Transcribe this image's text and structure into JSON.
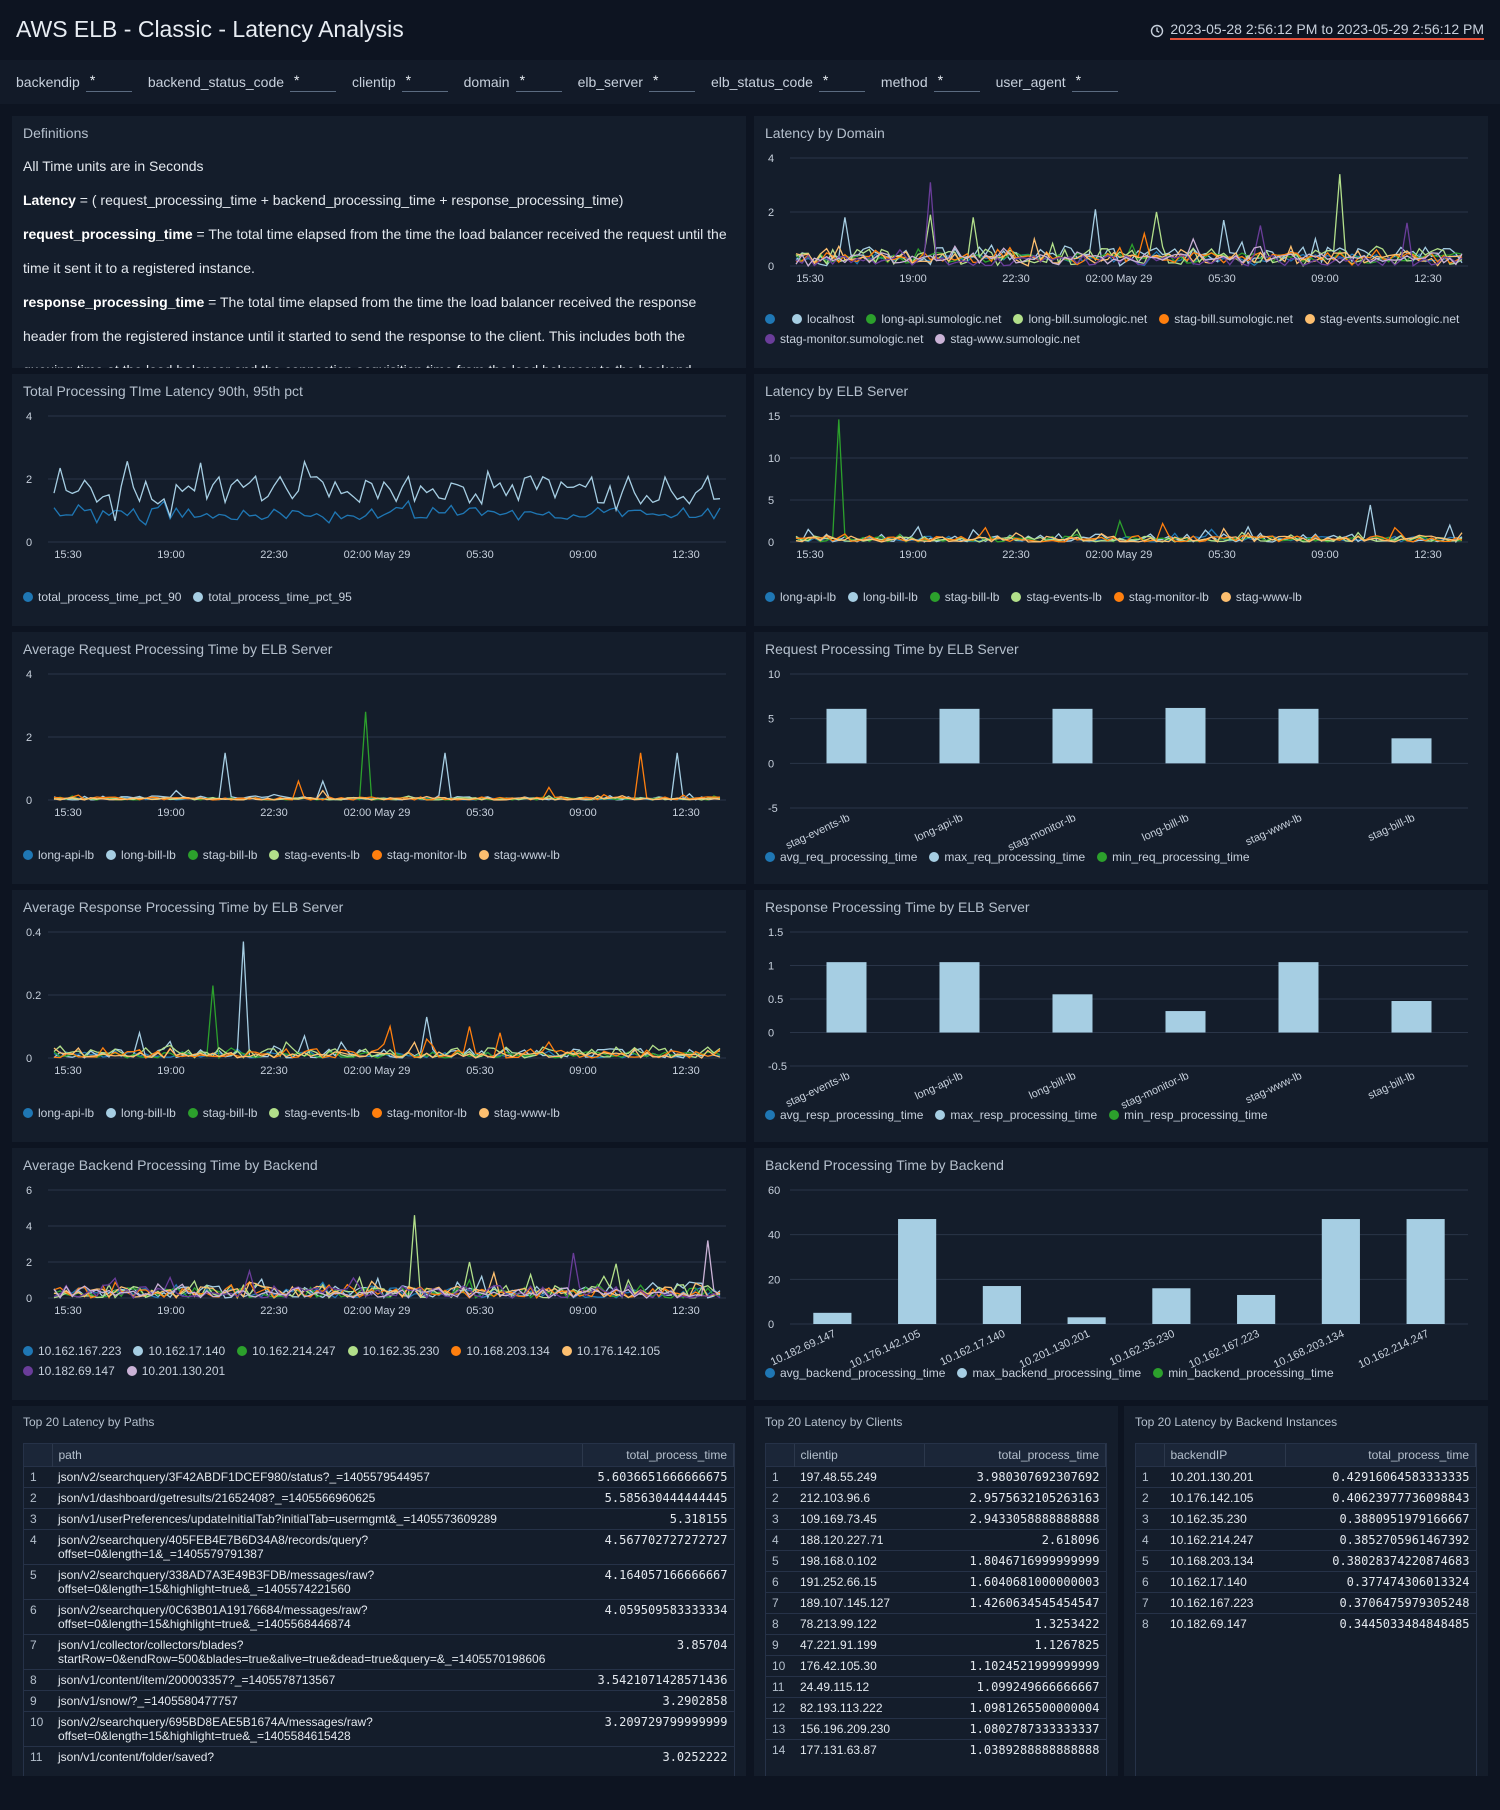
{
  "header": {
    "title": "AWS ELB - Classic - Latency Analysis",
    "time_range": "2023-05-28 2:56:12 PM to 2023-05-29 2:56:12 PM",
    "clock_icon": "clock-icon"
  },
  "filters": [
    {
      "label": "backendip",
      "value": "*"
    },
    {
      "label": "backend_status_code",
      "value": "*"
    },
    {
      "label": "clientip",
      "value": "*"
    },
    {
      "label": "domain",
      "value": "*"
    },
    {
      "label": "elb_server",
      "value": "*"
    },
    {
      "label": "elb_status_code",
      "value": "*"
    },
    {
      "label": "method",
      "value": "*"
    },
    {
      "label": "user_agent",
      "value": "*"
    }
  ],
  "definitions": {
    "title": "Definitions",
    "line1": "All Time units are in Seconds",
    "latency_term": "Latency",
    "latency_def": " = ( request_processing_time + backend_processing_time + response_processing_time)",
    "req_term": "request_processing_time",
    "req_def": " = The total time elapsed from the time the load balancer received the request until the time it sent it to a registered instance.",
    "resp_term": "response_processing_time",
    "resp_def": " = The total time elapsed from the time the load balancer received the response header from the registered instance until it started to send the response to the client. This includes both the queuing time at the load balancer and the connection acquisition time from the load balancer to the backend."
  },
  "colors": {
    "c1": "#1f77b4",
    "c2": "#a6cee3",
    "c3": "#2ca02c",
    "c4": "#b2df8a",
    "c5": "#ff7f0e",
    "c6": "#fdbf6f",
    "c7": "#6a3d9a",
    "c8": "#cab2d6"
  },
  "time_ticks": [
    "15:30",
    "19:00",
    "22:30",
    "02:00 May 29",
    "05:30",
    "09:00",
    "12:30"
  ],
  "chart_data": [
    {
      "id": "latency-by-domain",
      "type": "line",
      "title": "Latency by Domain",
      "ylim": [
        0,
        4
      ],
      "yticks": [
        0,
        2,
        4
      ],
      "legend": [
        "",
        "localhost",
        "long-api.sumologic.net",
        "long-bill.sumologic.net",
        "stag-bill.sumologic.net",
        "stag-events.sumologic.net",
        "stag-monitor.sumologic.net",
        "stag-www.sumologic.net"
      ],
      "series": [
        {
          "name": "",
          "base": 0.3,
          "noise": 0.15,
          "peaks": []
        },
        {
          "name": "localhost",
          "base": 0.4,
          "noise": 0.3,
          "peaks": [
            [
              0.07,
              1.8
            ],
            [
              0.45,
              2.1
            ],
            [
              0.64,
              1.7
            ]
          ]
        },
        {
          "name": "long-api.sumologic.net",
          "base": 0.3,
          "noise": 0.2,
          "peaks": [
            [
              0.5,
              0.8
            ]
          ]
        },
        {
          "name": "long-bill.sumologic.net",
          "base": 0.35,
          "noise": 0.3,
          "peaks": [
            [
              0.82,
              3.4
            ],
            [
              0.54,
              2.0
            ],
            [
              0.2,
              1.9
            ],
            [
              0.27,
              1.8
            ]
          ]
        },
        {
          "name": "stag-bill.sumologic.net",
          "base": 0.3,
          "noise": 0.2,
          "peaks": [
            [
              0.52,
              1.2
            ]
          ]
        },
        {
          "name": "stag-events.sumologic.net",
          "base": 0.3,
          "noise": 0.2,
          "peaks": [
            [
              0.36,
              1.0
            ]
          ]
        },
        {
          "name": "stag-monitor.sumologic.net",
          "base": 0.2,
          "noise": 0.2,
          "peaks": [
            [
              0.2,
              3.1
            ],
            [
              0.92,
              1.6
            ],
            [
              0.7,
              1.5
            ]
          ]
        },
        {
          "name": "stag-www.sumologic.net",
          "base": 0.3,
          "noise": 0.2,
          "peaks": [
            [
              0.6,
              1.0
            ]
          ]
        }
      ]
    },
    {
      "id": "total-processing",
      "type": "line",
      "title": "Total Processing TIme Latency 90th, 95th pct",
      "ylim": [
        0,
        4
      ],
      "yticks": [
        0,
        2,
        4
      ],
      "legend": [
        "total_process_time_pct_90",
        "total_process_time_pct_95"
      ],
      "series": [
        {
          "name": "total_process_time_pct_90",
          "base": 0.9,
          "noise": 0.2,
          "peaks": []
        },
        {
          "name": "total_process_time_pct_95",
          "base": 1.65,
          "noise": 0.45,
          "peaks": []
        }
      ]
    },
    {
      "id": "latency-by-elb",
      "type": "line",
      "title": "Latency by ELB Server",
      "ylim": [
        0,
        15
      ],
      "yticks": [
        0,
        5,
        10,
        15
      ],
      "legend": [
        "long-api-lb",
        "long-bill-lb",
        "stag-bill-lb",
        "stag-events-lb",
        "stag-monitor-lb",
        "stag-www-lb"
      ],
      "series": [
        {
          "name": "long-api-lb",
          "base": 0.3,
          "noise": 0.4,
          "peaks": [
            [
              0.62,
              1.5
            ]
          ]
        },
        {
          "name": "long-bill-lb",
          "base": 0.4,
          "noise": 0.6,
          "peaks": [
            [
              0.86,
              4.4
            ],
            [
              0.02,
              1.5
            ],
            [
              0.18,
              1.8
            ],
            [
              0.68,
              1.8
            ],
            [
              0.98,
              2.0
            ]
          ]
        },
        {
          "name": "stag-bill-lb",
          "base": 0.3,
          "noise": 0.4,
          "peaks": [
            [
              0.065,
              14.6
            ],
            [
              0.49,
              2.5
            ]
          ]
        },
        {
          "name": "stag-events-lb",
          "base": 0.3,
          "noise": 0.4,
          "peaks": [
            [
              0.42,
              1.5
            ]
          ]
        },
        {
          "name": "stag-monitor-lb",
          "base": 0.3,
          "noise": 0.5,
          "peaks": [
            [
              0.55,
              2.2
            ],
            [
              0.28,
              1.7
            ],
            [
              0.9,
              1.7
            ]
          ]
        },
        {
          "name": "stag-www-lb",
          "base": 0.3,
          "noise": 0.4,
          "peaks": [
            [
              0.64,
              1.6
            ]
          ]
        }
      ]
    },
    {
      "id": "avg-request",
      "type": "line",
      "title": "Average Request Processing Time by ELB Server",
      "ylim": [
        0,
        4
      ],
      "yticks": [
        0,
        2,
        4
      ],
      "legend": [
        "long-api-lb",
        "long-bill-lb",
        "stag-bill-lb",
        "stag-events-lb",
        "stag-monitor-lb",
        "stag-www-lb"
      ],
      "series": [
        {
          "name": "long-api-lb",
          "base": 0.02,
          "noise": 0.05,
          "peaks": []
        },
        {
          "name": "long-bill-lb",
          "base": 0.03,
          "noise": 0.1,
          "peaks": [
            [
              0.26,
              1.5
            ],
            [
              0.59,
              1.5
            ],
            [
              0.94,
              1.5
            ],
            [
              0.4,
              0.6
            ],
            [
              0.18,
              0.3
            ]
          ]
        },
        {
          "name": "stag-bill-lb",
          "base": 0.02,
          "noise": 0.05,
          "peaks": [
            [
              0.47,
              2.8
            ]
          ]
        },
        {
          "name": "stag-events-lb",
          "base": 0.03,
          "noise": 0.05,
          "peaks": []
        },
        {
          "name": "stag-monitor-lb",
          "base": 0.02,
          "noise": 0.08,
          "peaks": [
            [
              0.88,
              1.5
            ],
            [
              0.37,
              0.6
            ],
            [
              0.74,
              0.4
            ]
          ]
        },
        {
          "name": "stag-www-lb",
          "base": 0.03,
          "noise": 0.05,
          "peaks": [
            [
              0.4,
              0.3
            ]
          ]
        }
      ]
    },
    {
      "id": "req-by-elb",
      "type": "bar",
      "title": "Request Processing Time by ELB Server",
      "ylim": [
        -5,
        10
      ],
      "yticks": [
        -5,
        0,
        5,
        10
      ],
      "categories": [
        "stag-events-lb",
        "long-api-lb",
        "stag-monitor-lb",
        "long-bill-lb",
        "stag-www-lb",
        "stag-bill-lb"
      ],
      "values": [
        6.1,
        6.1,
        6.1,
        6.2,
        6.1,
        2.8
      ],
      "legend": [
        "avg_req_processing_time",
        "max_req_processing_time",
        "min_req_processing_time"
      ]
    },
    {
      "id": "avg-response",
      "type": "line",
      "title": "Average Response Processing Time by ELB Server",
      "ylim": [
        0,
        0.4
      ],
      "yticks": [
        0,
        0.2,
        0.4
      ],
      "legend": [
        "long-api-lb",
        "long-bill-lb",
        "stag-bill-lb",
        "stag-events-lb",
        "stag-monitor-lb",
        "stag-www-lb"
      ],
      "series": [
        {
          "name": "long-api-lb",
          "base": 0.01,
          "noise": 0.01,
          "peaks": []
        },
        {
          "name": "long-bill-lb",
          "base": 0.01,
          "noise": 0.02,
          "peaks": [
            [
              0.28,
              0.37
            ],
            [
              0.13,
              0.08
            ],
            [
              0.56,
              0.13
            ],
            [
              0.38,
              0.07
            ]
          ]
        },
        {
          "name": "stag-bill-lb",
          "base": 0.01,
          "noise": 0.01,
          "peaks": [
            [
              0.24,
              0.23
            ]
          ]
        },
        {
          "name": "stag-events-lb",
          "base": 0.015,
          "noise": 0.02,
          "peaks": [
            [
              0.17,
              0.04
            ],
            [
              0.9,
              0.04
            ]
          ]
        },
        {
          "name": "stag-monitor-lb",
          "base": 0.01,
          "noise": 0.02,
          "peaks": [
            [
              0.5,
              0.1
            ],
            [
              0.62,
              0.1
            ],
            [
              0.67,
              0.08
            ],
            [
              0.56,
              0.06
            ]
          ]
        },
        {
          "name": "stag-www-lb",
          "base": 0.01,
          "noise": 0.01,
          "peaks": [
            [
              0.54,
              0.05
            ]
          ]
        }
      ]
    },
    {
      "id": "resp-by-elb",
      "type": "bar",
      "title": "Response Processing Time by ELB Server",
      "ylim": [
        -0.5,
        1.5
      ],
      "yticks": [
        -0.5,
        0,
        0.5,
        1,
        1.5
      ],
      "categories": [
        "stag-events-lb",
        "long-api-lb",
        "long-bill-lb",
        "stag-monitor-lb",
        "stag-www-lb",
        "stag-bill-lb"
      ],
      "values": [
        1.05,
        1.05,
        0.57,
        0.32,
        1.05,
        0.47
      ],
      "legend": [
        "avg_resp_processing_time",
        "max_resp_processing_time",
        "min_resp_processing_time"
      ]
    },
    {
      "id": "avg-backend",
      "type": "line",
      "title": "Average Backend Processing Time by Backend",
      "ylim": [
        0,
        6
      ],
      "yticks": [
        0,
        2,
        4,
        6
      ],
      "legend": [
        "10.162.167.223",
        "10.162.17.140",
        "10.162.214.247",
        "10.162.35.230",
        "10.168.203.134",
        "10.176.142.105",
        "10.182.69.147",
        "10.201.130.201"
      ],
      "series": [
        {
          "name": "10.162.167.223",
          "base": 0.3,
          "noise": 0.3,
          "peaks": []
        },
        {
          "name": "10.162.17.140",
          "base": 0.35,
          "noise": 0.35,
          "peaks": [
            [
              0.64,
              1.2
            ]
          ]
        },
        {
          "name": "10.162.214.247",
          "base": 0.3,
          "noise": 0.3,
          "peaks": [
            [
              0.62,
              1.0
            ]
          ]
        },
        {
          "name": "10.162.35.230",
          "base": 0.35,
          "noise": 0.4,
          "peaks": [
            [
              0.54,
              4.6
            ],
            [
              0.62,
              2.0
            ],
            [
              0.72,
              1.3
            ],
            [
              0.84,
              1.9
            ]
          ]
        },
        {
          "name": "10.168.203.134",
          "base": 0.3,
          "noise": 0.3,
          "peaks": []
        },
        {
          "name": "10.176.142.105",
          "base": 0.35,
          "noise": 0.3,
          "peaks": [
            [
              0.66,
              1.4
            ]
          ]
        },
        {
          "name": "10.182.69.147",
          "base": 0.3,
          "noise": 0.4,
          "peaks": [
            [
              0.78,
              2.5
            ],
            [
              0.29,
              1.5
            ],
            [
              0.09,
              1.1
            ]
          ]
        },
        {
          "name": "10.201.130.201",
          "base": 0.3,
          "noise": 0.3,
          "peaks": [
            [
              0.98,
              3.2
            ]
          ]
        }
      ]
    },
    {
      "id": "backend-by-backend",
      "type": "bar",
      "title": "Backend Processing Time by Backend",
      "ylim": [
        0,
        60
      ],
      "yticks": [
        0,
        20,
        40,
        60
      ],
      "categories": [
        "10.182.69.147",
        "10.176.142.105",
        "10.162.17.140",
        "10.201.130.201",
        "10.162.35.230",
        "10.162.167.223",
        "10.168.203.134",
        "10.162.214.247"
      ],
      "values": [
        5,
        47,
        17,
        3,
        16,
        13,
        47,
        47
      ],
      "legend": [
        "avg_backend_processing_time",
        "max_backend_processing_time",
        "min_backend_processing_time"
      ]
    }
  ],
  "tables": {
    "paths": {
      "title": "Top 20 Latency by Paths",
      "headers": [
        "path",
        "total_process_time"
      ],
      "rows": [
        [
          "1",
          "json/v2/searchquery/3F42ABDF1DCEF980/status?_=1405579544957",
          "5.6036651666666675"
        ],
        [
          "2",
          "json/v1/dashboard/getresults/21652408?_=1405566960625",
          "5.585630444444445"
        ],
        [
          "3",
          "json/v1/userPreferences/updateInitialTab?initialTab=usermgmt&_=1405573609289",
          "5.318155"
        ],
        [
          "4",
          "json/v2/searchquery/405FEB4E7B6D34A8/records/query?\noffset=0&length=1&_=1405579791387",
          "4.567702727272727"
        ],
        [
          "5",
          "json/v2/searchquery/338AD7A3E49B3FDB/messages/raw?\noffset=0&length=15&highlight=true&_=1405574221560",
          "4.164057166666667"
        ],
        [
          "6",
          "json/v2/searchquery/0C63B01A19176684/messages/raw?\noffset=0&length=15&highlight=true&_=1405568446874",
          "4.059509583333334"
        ],
        [
          "7",
          "json/v1/collector/collectors/blades?\nstartRow=0&endRow=500&blades=true&alive=true&dead=true&query=&_=1405570198606",
          "3.85704"
        ],
        [
          "8",
          "json/v1/content/item/200003357?_=1405578713567",
          "3.5421071428571436"
        ],
        [
          "9",
          "json/v1/snow/?_=1405580477757",
          "3.2902858"
        ],
        [
          "10",
          "json/v2/searchquery/695BD8EAE5B1674A/messages/raw?\noffset=0&length=15&highlight=true&_=1405584615428",
          "3.209729799999999"
        ],
        [
          "11",
          "json/v1/content/folder/saved?",
          "3.0252222"
        ]
      ]
    },
    "clients": {
      "title": "Top 20 Latency by Clients",
      "headers": [
        "clientip",
        "total_process_time"
      ],
      "rows": [
        [
          "1",
          "197.48.55.249",
          "3.980307692307692"
        ],
        [
          "2",
          "212.103.96.6",
          "2.9575632105263163"
        ],
        [
          "3",
          "109.169.73.45",
          "2.9433058888888888"
        ],
        [
          "4",
          "188.120.227.71",
          "2.618096"
        ],
        [
          "5",
          "198.168.0.102",
          "1.8046716999999999"
        ],
        [
          "6",
          "191.252.66.15",
          "1.6040681000000003"
        ],
        [
          "7",
          "189.107.145.127",
          "1.4260634545454547"
        ],
        [
          "8",
          "78.213.99.122",
          "1.3253422"
        ],
        [
          "9",
          "47.221.91.199",
          "1.1267825"
        ],
        [
          "10",
          "176.42.105.30",
          "1.1024521999999999"
        ],
        [
          "11",
          "24.49.115.12",
          "1.099249666666667"
        ],
        [
          "12",
          "82.193.113.222",
          "1.0981265500000004"
        ],
        [
          "13",
          "156.196.209.230",
          "1.0802787333333337"
        ],
        [
          "14",
          "177.131.63.87",
          "1.0389288888888888"
        ]
      ]
    },
    "backends": {
      "title": "Top 20 Latency by Backend Instances",
      "headers": [
        "backendIP",
        "total_process_time"
      ],
      "rows": [
        [
          "1",
          "10.201.130.201",
          "0.42916064583333335"
        ],
        [
          "2",
          "10.176.142.105",
          "0.40623977736098843"
        ],
        [
          "3",
          "10.162.35.230",
          "0.3880951979166667"
        ],
        [
          "4",
          "10.162.214.247",
          "0.3852705961467392"
        ],
        [
          "5",
          "10.168.203.134",
          "0.38028374220874683"
        ],
        [
          "6",
          "10.162.17.140",
          "0.377474306013324"
        ],
        [
          "7",
          "10.162.167.223",
          "0.3706475979305248"
        ],
        [
          "8",
          "10.182.69.147",
          "0.3445033484848485"
        ]
      ]
    }
  }
}
